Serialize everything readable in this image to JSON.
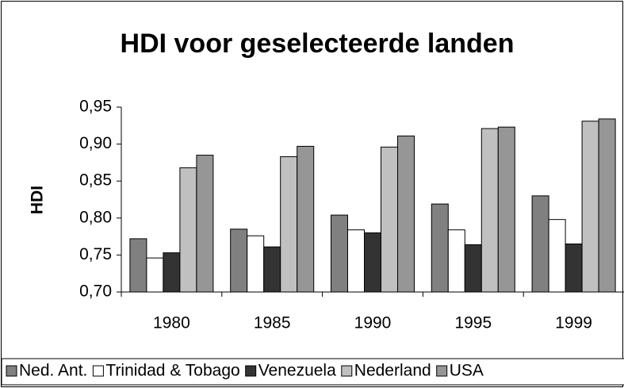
{
  "chart_data": {
    "type": "bar",
    "title": "HDI voor geselecteerde landen",
    "y_label": "HDI",
    "categories": [
      "1980",
      "1985",
      "1990",
      "1995",
      "1999"
    ],
    "series": [
      {
        "name": "Ned. Ant.",
        "color": "#808080",
        "values": [
          0.772,
          0.785,
          0.804,
          0.819,
          0.83
        ]
      },
      {
        "name": "Trinidad & Tobago",
        "color": "#ffffff",
        "values": [
          0.746,
          0.776,
          0.784,
          0.784,
          0.798
        ]
      },
      {
        "name": "Venezuela",
        "color": "#333333",
        "values": [
          0.753,
          0.761,
          0.78,
          0.764,
          0.765
        ]
      },
      {
        "name": "Nederland",
        "color": "#c0c0c0",
        "values": [
          0.868,
          0.883,
          0.896,
          0.921,
          0.931
        ]
      },
      {
        "name": "USA",
        "color": "#969696",
        "values": [
          0.885,
          0.897,
          0.911,
          0.923,
          0.934
        ]
      }
    ],
    "ylim": [
      0.7,
      0.95
    ],
    "yticks": [
      {
        "value": 0.7,
        "label": "0,70"
      },
      {
        "value": 0.75,
        "label": "0,75"
      },
      {
        "value": 0.8,
        "label": "0,80"
      },
      {
        "value": 0.85,
        "label": "0,85"
      },
      {
        "value": 0.9,
        "label": "0,90"
      },
      {
        "value": 0.95,
        "label": "0,95"
      }
    ],
    "grid": false,
    "legend": "bottom"
  }
}
